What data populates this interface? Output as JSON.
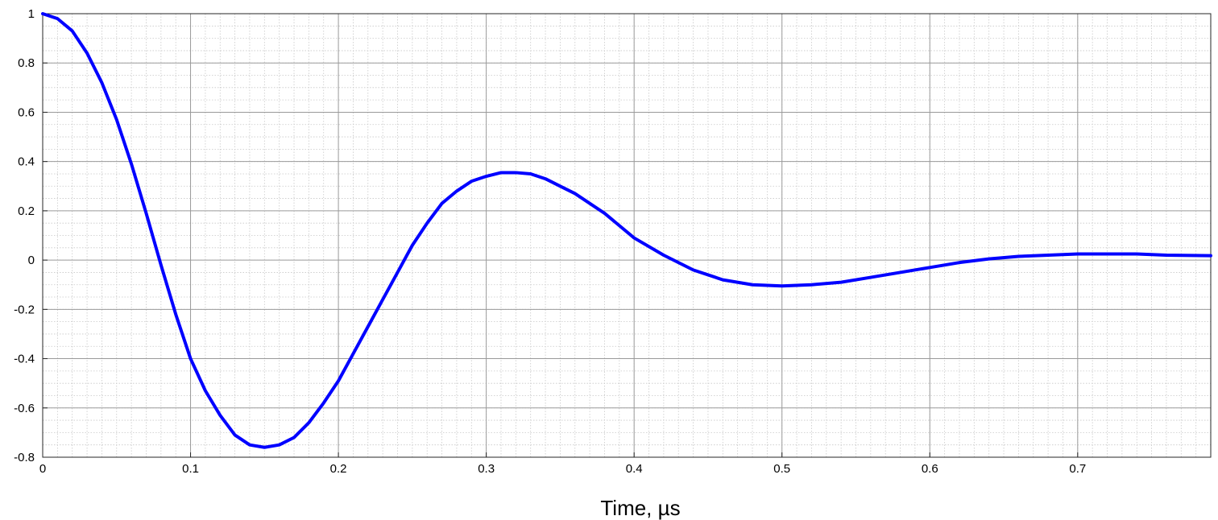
{
  "chart_data": {
    "type": "line",
    "title": "",
    "xlabel": "Time, µs",
    "ylabel": "",
    "xlim": [
      0,
      0.79
    ],
    "ylim": [
      -0.8,
      1
    ],
    "x_ticks": [
      0,
      0.1,
      0.2,
      0.3,
      0.4,
      0.5,
      0.6,
      0.7
    ],
    "x_tick_labels": [
      "0",
      "0.1",
      "0.2",
      "0.3",
      "0.4",
      "0.5",
      "0.6",
      "0.7"
    ],
    "y_ticks": [
      -0.8,
      -0.6,
      -0.4,
      -0.2,
      0,
      0.2,
      0.4,
      0.6,
      0.8,
      1
    ],
    "y_tick_labels": [
      "-0.8",
      "-0.6",
      "-0.4",
      "-0.2",
      "0",
      "0.2",
      "0.4",
      "0.6",
      "0.8",
      "1"
    ],
    "grid": true,
    "minor_grid": true,
    "series": [
      {
        "color": "#0000ff",
        "x": [
          0,
          0.01,
          0.02,
          0.03,
          0.04,
          0.05,
          0.06,
          0.07,
          0.08,
          0.09,
          0.1,
          0.11,
          0.12,
          0.13,
          0.14,
          0.15,
          0.16,
          0.17,
          0.18,
          0.19,
          0.2,
          0.21,
          0.22,
          0.23,
          0.24,
          0.25,
          0.26,
          0.27,
          0.28,
          0.29,
          0.3,
          0.31,
          0.32,
          0.33,
          0.34,
          0.35,
          0.36,
          0.37,
          0.38,
          0.39,
          0.4,
          0.42,
          0.44,
          0.46,
          0.48,
          0.5,
          0.52,
          0.54,
          0.56,
          0.58,
          0.6,
          0.62,
          0.64,
          0.66,
          0.68,
          0.7,
          0.72,
          0.74,
          0.76,
          0.79
        ],
        "y": [
          1.0,
          0.98,
          0.93,
          0.84,
          0.72,
          0.57,
          0.39,
          0.19,
          -0.02,
          -0.22,
          -0.4,
          -0.53,
          -0.63,
          -0.71,
          -0.75,
          -0.76,
          -0.75,
          -0.72,
          -0.66,
          -0.58,
          -0.49,
          -0.38,
          -0.27,
          -0.16,
          -0.05,
          0.06,
          0.15,
          0.23,
          0.28,
          0.32,
          0.34,
          0.355,
          0.355,
          0.35,
          0.33,
          0.3,
          0.27,
          0.23,
          0.19,
          0.14,
          0.09,
          0.02,
          -0.04,
          -0.08,
          -0.1,
          -0.105,
          -0.1,
          -0.09,
          -0.07,
          -0.05,
          -0.03,
          -0.01,
          0.005,
          0.015,
          0.02,
          0.025,
          0.025,
          0.025,
          0.02,
          0.018
        ]
      }
    ]
  }
}
